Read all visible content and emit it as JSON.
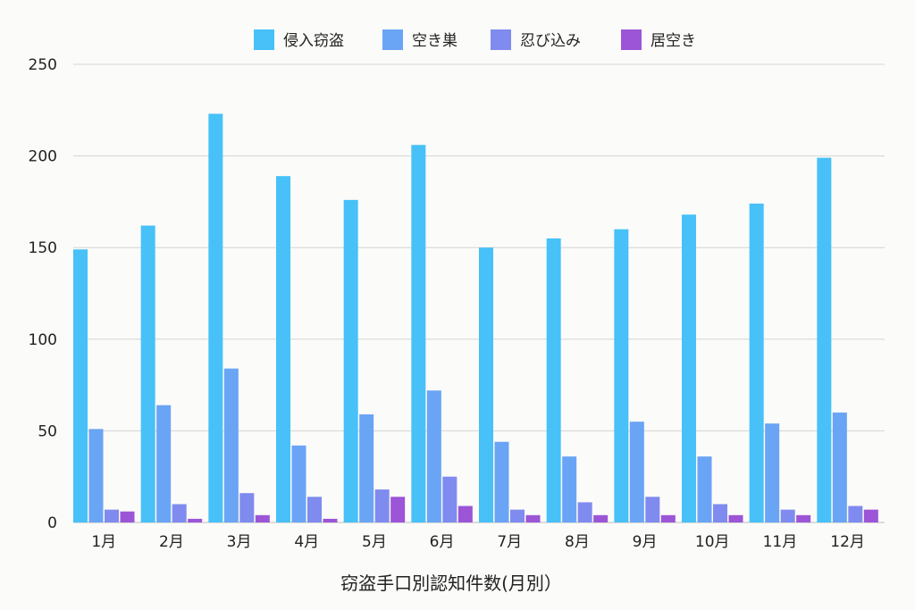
{
  "chart_data": {
    "type": "bar",
    "title": "",
    "xlabel": "窃盗手口別認知件数(月別）",
    "ylabel": "",
    "ylim": [
      0,
      250
    ],
    "yticks": [
      0,
      50,
      100,
      150,
      200,
      250
    ],
    "grid": true,
    "legend_position": "top-center",
    "categories": [
      "1月",
      "2月",
      "3月",
      "4月",
      "5月",
      "6月",
      "7月",
      "8月",
      "9月",
      "10月",
      "11月",
      "12月"
    ],
    "series": [
      {
        "name": "侵入窃盗",
        "color": "#47c1f8",
        "values": [
          149,
          162,
          223,
          189,
          176,
          206,
          150,
          155,
          160,
          168,
          174,
          199
        ]
      },
      {
        "name": "空き巣",
        "color": "#6aa4f5",
        "values": [
          51,
          64,
          84,
          42,
          59,
          72,
          44,
          36,
          55,
          36,
          54,
          60
        ]
      },
      {
        "name": "忍び込み",
        "color": "#7f8bee",
        "values": [
          7,
          10,
          16,
          14,
          18,
          25,
          7,
          11,
          14,
          10,
          7,
          9
        ]
      },
      {
        "name": "居空き",
        "color": "#9b55d6",
        "values": [
          6,
          2,
          4,
          2,
          14,
          9,
          4,
          4,
          4,
          4,
          4,
          7
        ]
      }
    ]
  }
}
